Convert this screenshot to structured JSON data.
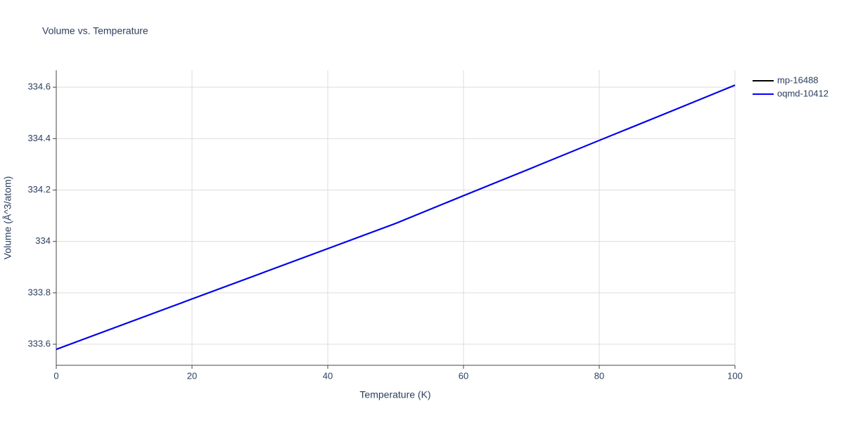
{
  "chart_data": {
    "type": "line",
    "title": "Volume vs. Temperature",
    "xlabel": "Temperature (K)",
    "ylabel": "Volume (Å^3/atom)",
    "x": [
      0,
      10,
      20,
      30,
      40,
      50,
      60,
      70,
      80,
      90,
      100
    ],
    "series": [
      {
        "name": "mp-16488",
        "color": "#000000",
        "values": [
          333.58,
          333.678,
          333.776,
          333.874,
          333.972,
          334.07,
          334.178,
          334.285,
          334.393,
          334.5,
          334.608
        ]
      },
      {
        "name": "oqmd-10412",
        "color": "#0000ff",
        "values": [
          333.58,
          333.678,
          333.776,
          333.874,
          333.972,
          334.07,
          334.178,
          334.285,
          334.393,
          334.5,
          334.608
        ]
      }
    ],
    "xlim": [
      0,
      100
    ],
    "xticks": [
      0,
      20,
      40,
      60,
      80,
      100
    ],
    "ylim": [
      333.518,
      334.666
    ],
    "yticks": [
      333.6,
      333.8,
      334,
      334.2,
      334.4,
      334.6
    ],
    "grid": true,
    "legend": "right"
  }
}
